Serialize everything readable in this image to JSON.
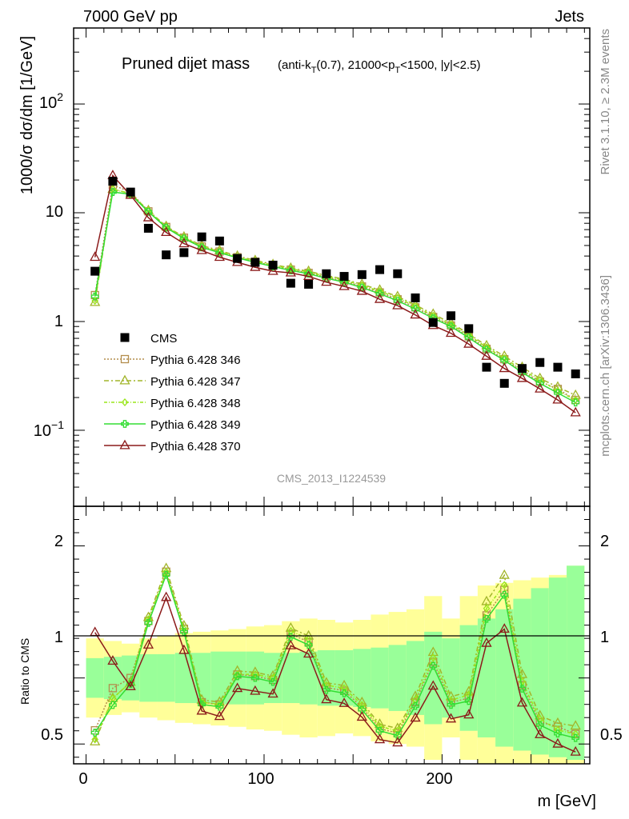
{
  "header": {
    "left": "7000 GeV pp",
    "right": "Jets"
  },
  "side_text": {
    "upper": "Rivet 3.1.10, ≥ 2.3M events",
    "lower": "mcplots.cern.ch [arXiv:1306.3436]"
  },
  "chart_data": {
    "type": "scatter",
    "title": "Pruned dijet mass",
    "title_suffix": "(anti-k_T(0.7), 21000<p_T<1500, |y|<2.5)",
    "analysis_id": "CMS_2013_I1224539",
    "xlabel": "m [GeV]",
    "ylabel": "1000/σ dσ/dm [1/GeV]",
    "ratio_ylabel": "Ratio to CMS",
    "xlim": [
      -7,
      283
    ],
    "ylim": [
      0.02,
      500
    ],
    "yscale": "log",
    "ratio_ylim": [
      0.35,
      2.3
    ],
    "x_ticks": [
      "0",
      "100",
      "200"
    ],
    "y_ticks": [
      "10^-1",
      "1",
      "10",
      "10^2"
    ],
    "ratio_ticks": [
      "0.5",
      "1",
      "2"
    ],
    "x": [
      5,
      15,
      25,
      35,
      45,
      55,
      65,
      75,
      85,
      95,
      105,
      115,
      125,
      135,
      145,
      155,
      165,
      175,
      185,
      195,
      205,
      215,
      225,
      235,
      245,
      255,
      265,
      275
    ],
    "series": [
      {
        "name": "CMS",
        "color": "#000000",
        "marker": "square-filled",
        "values": [
          2.9,
          19.5,
          15.5,
          7.2,
          4.1,
          4.3,
          6.0,
          5.5,
          3.8,
          3.5,
          3.3,
          2.25,
          2.2,
          2.75,
          2.6,
          2.7,
          3.0,
          2.75,
          1.65,
          0.98,
          1.13,
          0.86,
          0.38,
          0.27,
          0.37,
          0.42,
          0.38,
          0.33
        ]
      },
      {
        "name": "Pythia 6.428 346",
        "color": "#b38d4d",
        "marker": "square-open",
        "dash": "2,2",
        "values": [
          1.75,
          18.0,
          15.5,
          10.3,
          7.4,
          5.9,
          4.9,
          4.4,
          3.9,
          3.55,
          3.25,
          3.0,
          2.8,
          2.55,
          2.35,
          2.1,
          1.85,
          1.6,
          1.35,
          1.1,
          0.92,
          0.73,
          0.56,
          0.45,
          0.35,
          0.28,
          0.24,
          0.19
        ]
      },
      {
        "name": "Pythia 6.428 347",
        "color": "#a2b52a",
        "marker": "triangle-open",
        "dash": "6,3,2,3",
        "values": [
          1.5,
          16.5,
          15.0,
          10.5,
          7.5,
          6.0,
          5.0,
          4.5,
          4.0,
          3.65,
          3.35,
          3.1,
          2.9,
          2.65,
          2.45,
          2.2,
          1.95,
          1.7,
          1.42,
          1.17,
          0.97,
          0.77,
          0.6,
          0.48,
          0.38,
          0.3,
          0.25,
          0.21
        ]
      },
      {
        "name": "Pythia 6.428 348",
        "color": "#99e619",
        "marker": "diamond-open",
        "dash": "4,2,1,2",
        "values": [
          1.55,
          16.5,
          15.0,
          10.4,
          7.4,
          5.9,
          4.9,
          4.4,
          3.9,
          3.6,
          3.3,
          3.05,
          2.85,
          2.6,
          2.4,
          2.15,
          1.9,
          1.65,
          1.38,
          1.13,
          0.94,
          0.75,
          0.58,
          0.46,
          0.36,
          0.29,
          0.23,
          0.19
        ]
      },
      {
        "name": "Pythia 6.428 349",
        "color": "#33dd33",
        "marker": "cross-open",
        "dash": "",
        "values": [
          1.7,
          15.5,
          14.8,
          10.2,
          7.3,
          5.8,
          4.8,
          4.3,
          3.85,
          3.5,
          3.2,
          2.95,
          2.75,
          2.5,
          2.3,
          2.05,
          1.8,
          1.55,
          1.3,
          1.07,
          0.9,
          0.71,
          0.55,
          0.44,
          0.34,
          0.27,
          0.22,
          0.18
        ]
      },
      {
        "name": "Pythia 6.428 370",
        "color": "#8b1a1a",
        "marker": "triangle-open",
        "dash": "",
        "values": [
          3.9,
          22.0,
          14.5,
          9.0,
          6.6,
          5.2,
          4.5,
          3.9,
          3.5,
          3.15,
          2.9,
          2.8,
          2.6,
          2.3,
          2.1,
          1.9,
          1.6,
          1.4,
          1.15,
          0.92,
          0.78,
          0.62,
          0.48,
          0.37,
          0.3,
          0.24,
          0.19,
          0.145
        ]
      }
    ],
    "ratio_bands": {
      "inner_low": [
        0.85,
        0.84,
        0.83,
        0.82,
        0.82,
        0.81,
        0.81,
        0.8,
        0.8,
        0.8,
        0.81,
        0.81,
        0.8,
        0.79,
        0.79,
        0.78,
        0.77,
        0.75,
        0.72,
        0.65,
        0.7,
        0.6,
        0.55,
        0.48,
        0.45,
        0.42,
        0.4,
        0.38
      ],
      "inner_high": [
        1.15,
        1.16,
        1.17,
        1.18,
        1.18,
        1.19,
        1.19,
        1.2,
        1.2,
        1.2,
        1.19,
        1.19,
        1.2,
        1.21,
        1.21,
        1.22,
        1.23,
        1.25,
        1.28,
        1.35,
        1.3,
        1.4,
        1.45,
        1.52,
        1.6,
        1.68,
        1.76,
        1.85
      ],
      "outer_low": [
        0.7,
        0.72,
        0.74,
        0.7,
        0.68,
        0.66,
        0.65,
        0.64,
        0.63,
        0.61,
        0.6,
        0.57,
        0.55,
        0.56,
        0.58,
        0.56,
        0.52,
        0.5,
        0.48,
        0.38,
        0.55,
        0.38,
        0.3,
        0.28,
        0.26,
        0.25,
        0.24,
        0.22
      ],
      "outer_high": [
        1.3,
        1.28,
        1.26,
        1.3,
        1.32,
        1.34,
        1.35,
        1.36,
        1.37,
        1.39,
        1.4,
        1.43,
        1.45,
        1.44,
        1.42,
        1.44,
        1.48,
        1.5,
        1.52,
        1.62,
        1.45,
        1.62,
        1.7,
        1.72,
        1.74,
        1.76,
        1.78,
        1.85
      ]
    },
    "legend_position": "lower-left",
    "grid": false
  }
}
